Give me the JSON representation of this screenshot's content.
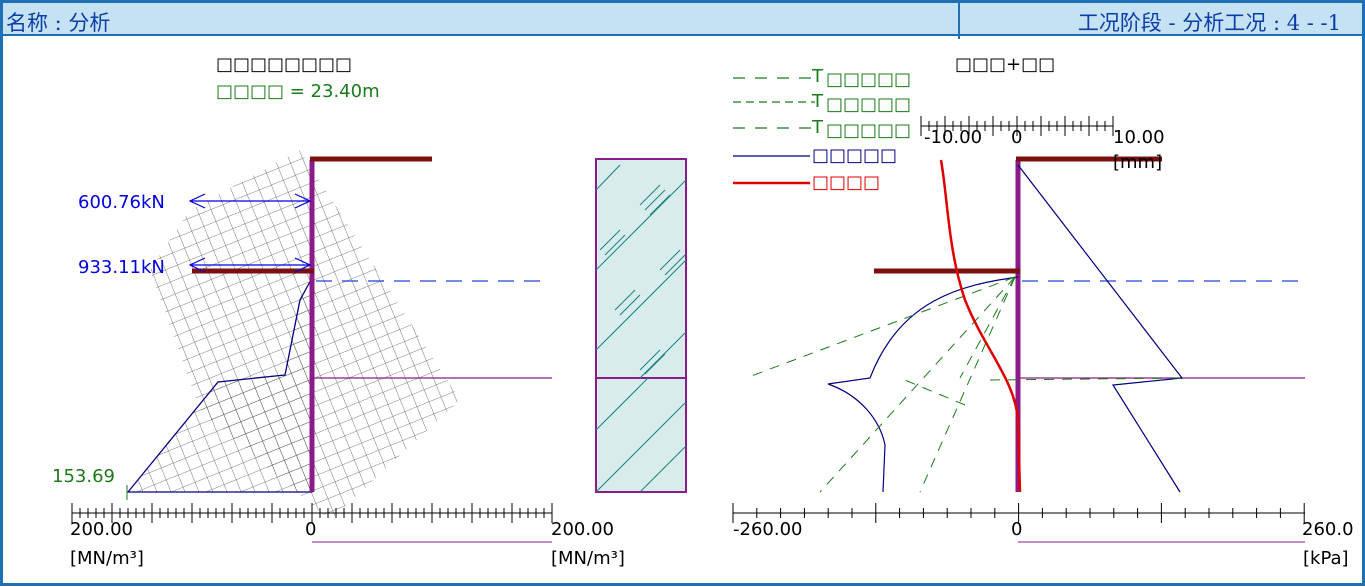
{
  "window": {
    "left_title": "名称 : 分析",
    "right_title": "工况阶段 - 分析工况 : 4 - -1"
  },
  "left_chart": {
    "title": "□□□□□□□□",
    "depth_label": "□□□□ = 23.40m",
    "anchor_force_1": "600.76kN",
    "anchor_force_2": "933.11kN",
    "bottom_value": "153.69",
    "axis_left_value": "200.00",
    "axis_zero": "0",
    "axis_right_value": "200.00",
    "axis_unit_left": "[MN/m³]",
    "axis_unit_right": "[MN/m³]"
  },
  "right_chart": {
    "title": "□□□+□□",
    "legend": [
      {
        "line": "dash-green",
        "prefix": "T",
        "label": "□□□□□",
        "color": "#1b7a1b"
      },
      {
        "line": "dash2-green",
        "prefix": "T",
        "label": "□□□□□",
        "color": "#1b7a1b"
      },
      {
        "line": "dash-green",
        "prefix": "T",
        "label": "□□□□□",
        "color": "#1b7a1b"
      },
      {
        "line": "solid-navy",
        "prefix": "",
        "label": "□□□□□",
        "color": "#000080"
      },
      {
        "line": "solid-red",
        "prefix": "",
        "label": "□□□□",
        "color": "#e00000"
      }
    ],
    "disp_axis_left": "-10.00",
    "disp_axis_zero": "0",
    "disp_axis_right": "10.00",
    "disp_axis_unit": "[mm]",
    "axis_left_value": "-260.00",
    "axis_zero": "0",
    "axis_right_value": "260.0",
    "axis_unit": "[kPa]"
  },
  "colors": {
    "frame": "#1f6fb5",
    "title_bg": "#c5e1f4",
    "wall": "#8b1a8b",
    "anchor": "#7a1010",
    "navy": "#000080",
    "green": "#1b7a1b",
    "red": "#e00000",
    "soil_fill": "#d8ecec"
  }
}
